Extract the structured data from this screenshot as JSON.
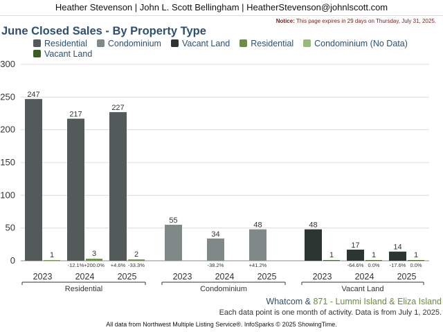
{
  "header": {
    "agent_line": "Heather Stevenson | John L. Scott Bellingham | HeatherStevenson@johnlscott.com"
  },
  "notice": {
    "label": "Notice:",
    "text": " This page expires in 29 days on Thursday, July 31, 2025."
  },
  "footer": {
    "area_main": "Whatcom",
    "area_amp": " & ",
    "area_sub": "871 - Lummi Island & Eliza Island",
    "data_note": "Each data point is one month of activity. Data is from July 1, 2025.",
    "source": "All data from Northwest Multiple Listing Service®. InfoSparks © 2025 ShowingTime."
  },
  "chart_data": {
    "type": "bar",
    "title": "June Closed Sales - By Property Type",
    "ylim": [
      0,
      300
    ],
    "yticks": [
      0,
      50,
      100,
      150,
      200,
      250,
      300
    ],
    "grid": true,
    "legend_placement": "top",
    "legend": [
      {
        "name": "Residential",
        "color": "#525b59"
      },
      {
        "name": "Condominium",
        "color": "#7f8a88"
      },
      {
        "name": "Vacant Land",
        "color": "#2b3532"
      },
      {
        "name": "Residential",
        "color": "#6b8c46"
      },
      {
        "name": "Condominium (No Data)",
        "color": "#94bb77"
      },
      {
        "name": "Vacant Land",
        "color": "#3a5c25"
      }
    ],
    "groups": [
      {
        "name": "Residential",
        "years": [
          {
            "year": "2023",
            "primary": 247,
            "secondary": 1,
            "primary_change": "",
            "secondary_change": ""
          },
          {
            "year": "2024",
            "primary": 217,
            "secondary": 3,
            "primary_change": "-12.1%",
            "secondary_change": "+200.0%"
          },
          {
            "year": "2025",
            "primary": 227,
            "secondary": 2,
            "primary_change": "+4.6%",
            "secondary_change": "-33.3%"
          }
        ],
        "primary_color": "#525b59",
        "secondary_color": "#6b8c46"
      },
      {
        "name": "Condominium",
        "years": [
          {
            "year": "2023",
            "primary": 55,
            "secondary": null,
            "primary_change": "",
            "secondary_change": ""
          },
          {
            "year": "2024",
            "primary": 34,
            "secondary": null,
            "primary_change": "-38.2%",
            "secondary_change": ""
          },
          {
            "year": "2025",
            "primary": 48,
            "secondary": null,
            "primary_change": "+41.2%",
            "secondary_change": ""
          }
        ],
        "primary_color": "#7f8a88",
        "secondary_color": "#94bb77"
      },
      {
        "name": "Vacant Land",
        "years": [
          {
            "year": "2023",
            "primary": 48,
            "secondary": 1,
            "primary_change": "",
            "secondary_change": ""
          },
          {
            "year": "2024",
            "primary": 17,
            "secondary": 1,
            "primary_change": "-64.6%",
            "secondary_change": "0.0%"
          },
          {
            "year": "2025",
            "primary": 14,
            "secondary": 1,
            "primary_change": "-17.6%",
            "secondary_change": "0.0%"
          }
        ],
        "primary_color": "#2b3532",
        "secondary_color": "#3a5c25"
      }
    ]
  }
}
